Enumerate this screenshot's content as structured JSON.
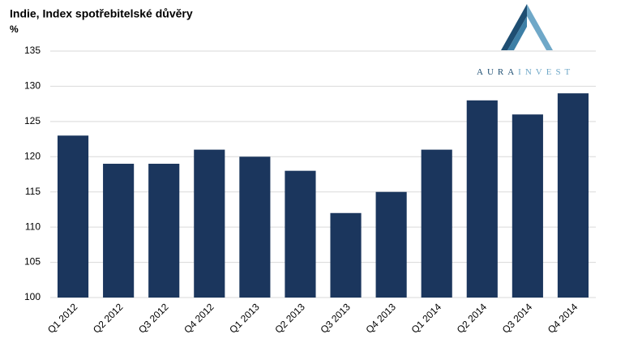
{
  "chart_data": {
    "type": "bar",
    "title": "Indie, Index spotřebitelské důvěry",
    "y_label": "%",
    "categories": [
      "Q1 2012",
      "Q2 2012",
      "Q3 2012",
      "Q4 2012",
      "Q1 2013",
      "Q2 2013",
      "Q3 2013",
      "Q4 2013",
      "Q1 2014",
      "Q2 2014",
      "Q3 2014",
      "Q4 2014"
    ],
    "values": [
      123,
      119,
      119,
      121,
      120,
      118,
      112,
      115,
      121,
      128,
      126,
      129
    ],
    "color": "#1b365d",
    "ylim": [
      100,
      135
    ],
    "yticks": [
      100,
      105,
      110,
      115,
      120,
      125,
      130,
      135
    ],
    "grid": true
  },
  "logo": {
    "brand": "AURA",
    "suffix": "INVEST"
  }
}
